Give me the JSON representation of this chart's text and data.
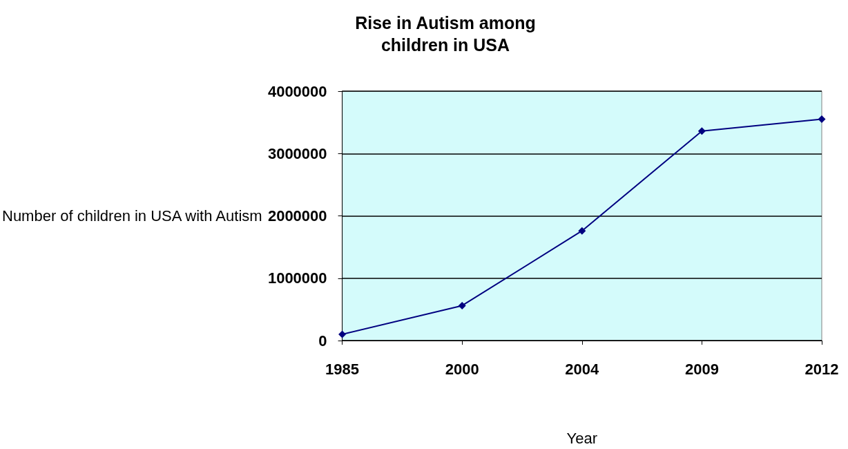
{
  "chart_data": {
    "type": "line",
    "title": "Rise in Autism among\nchildren in USA",
    "xlabel": "Year",
    "ylabel": "Number of children in USA with Autism",
    "categories": [
      "1985",
      "2000",
      "2004",
      "2009",
      "2012"
    ],
    "series": [
      {
        "color": "#000080",
        "values": [
          100000,
          560000,
          1760000,
          3360000,
          3550000
        ]
      }
    ],
    "ylim": [
      0,
      4000000
    ],
    "yticks": [
      0,
      1000000,
      2000000,
      3000000,
      4000000
    ],
    "grid": "y",
    "marker": "diamond",
    "line_style": "solid"
  }
}
